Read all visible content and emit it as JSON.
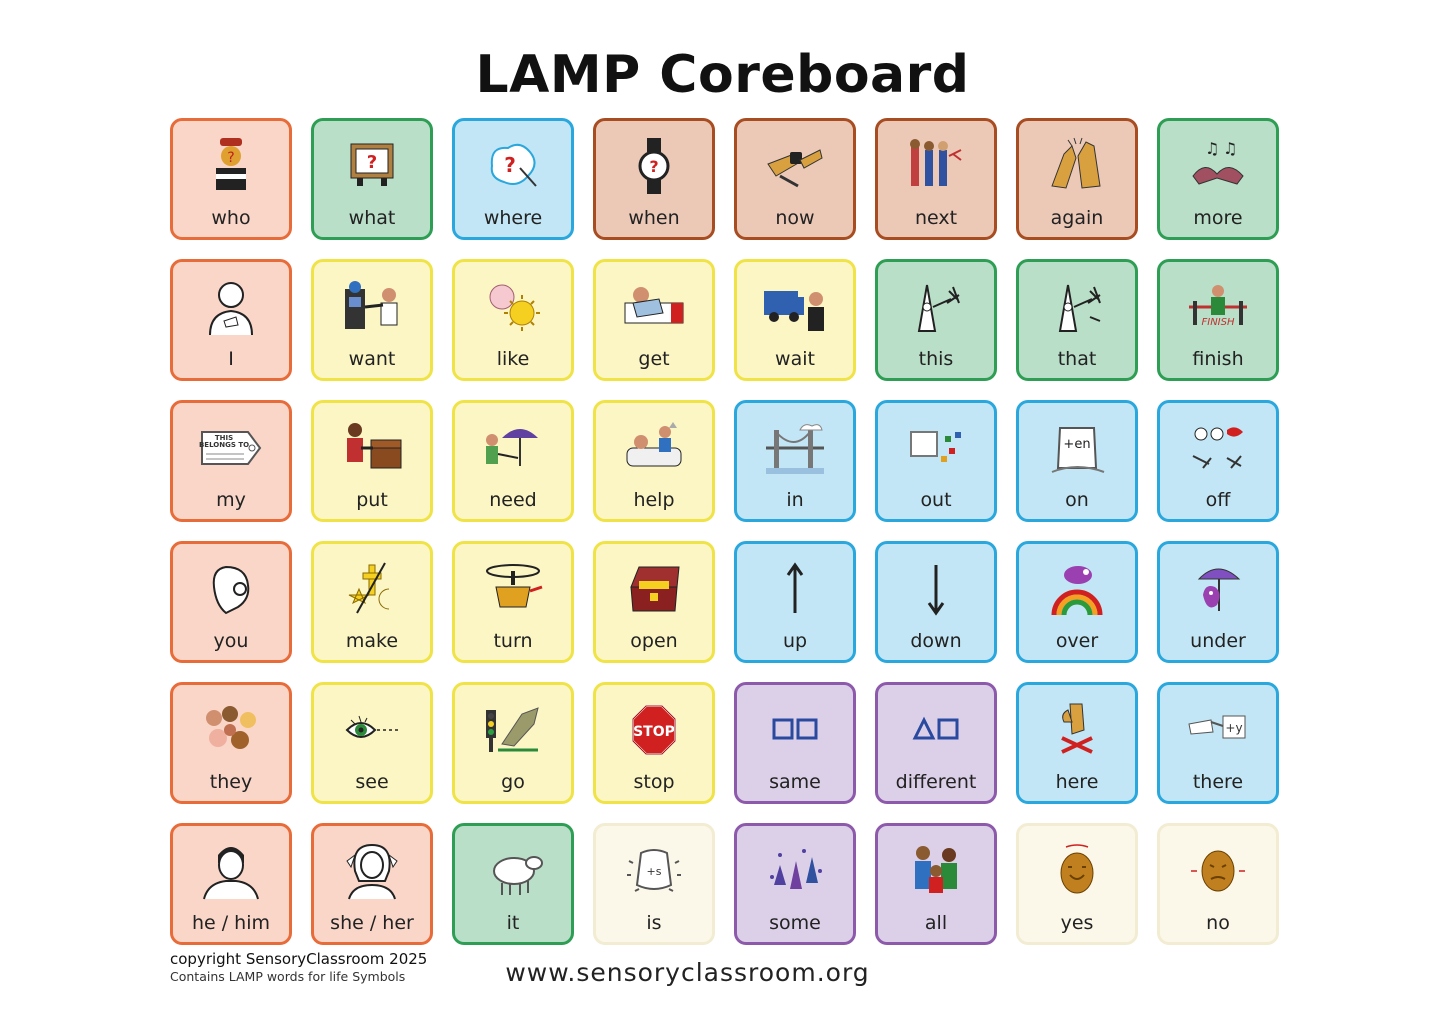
{
  "title": "LAMP Coreboard",
  "colors": {
    "orange": "#e86b3a",
    "green": "#2f9e55",
    "blue": "#2aa7dc",
    "brown": "#a84d22",
    "yellow": "#efe348",
    "purple": "#8d5aab",
    "cream": "#f2ecd2"
  },
  "cells": [
    {
      "label": "who",
      "color": "orange",
      "icon": "who-icon"
    },
    {
      "label": "what",
      "color": "green",
      "icon": "what-icon"
    },
    {
      "label": "where",
      "color": "blue",
      "icon": "where-icon"
    },
    {
      "label": "when",
      "color": "brown",
      "icon": "when-icon"
    },
    {
      "label": "now",
      "color": "brown",
      "icon": "now-icon"
    },
    {
      "label": "next",
      "color": "brown",
      "icon": "next-icon"
    },
    {
      "label": "again",
      "color": "brown",
      "icon": "again-icon"
    },
    {
      "label": "more",
      "color": "green",
      "icon": "more-icon"
    },
    {
      "label": "I",
      "color": "orange",
      "icon": "i-icon"
    },
    {
      "label": "want",
      "color": "yellow",
      "icon": "want-icon"
    },
    {
      "label": "like",
      "color": "yellow",
      "icon": "like-icon"
    },
    {
      "label": "get",
      "color": "yellow",
      "icon": "get-icon"
    },
    {
      "label": "wait",
      "color": "yellow",
      "icon": "wait-icon"
    },
    {
      "label": "this",
      "color": "green",
      "icon": "this-icon"
    },
    {
      "label": "that",
      "color": "green",
      "icon": "that-icon"
    },
    {
      "label": "finish",
      "color": "green",
      "icon": "finish-icon"
    },
    {
      "label": "my",
      "color": "orange",
      "icon": "my-icon"
    },
    {
      "label": "put",
      "color": "yellow",
      "icon": "put-icon"
    },
    {
      "label": "need",
      "color": "yellow",
      "icon": "need-icon"
    },
    {
      "label": "help",
      "color": "yellow",
      "icon": "help-icon"
    },
    {
      "label": "in",
      "color": "blue",
      "icon": "in-icon"
    },
    {
      "label": "out",
      "color": "blue",
      "icon": "out-icon"
    },
    {
      "label": "on",
      "color": "blue",
      "icon": "on-icon"
    },
    {
      "label": "off",
      "color": "blue",
      "icon": "off-icon"
    },
    {
      "label": "you",
      "color": "orange",
      "icon": "you-icon"
    },
    {
      "label": "make",
      "color": "yellow",
      "icon": "make-icon"
    },
    {
      "label": "turn",
      "color": "yellow",
      "icon": "turn-icon"
    },
    {
      "label": "open",
      "color": "yellow",
      "icon": "open-icon"
    },
    {
      "label": "up",
      "color": "blue",
      "icon": "up-arrow-icon"
    },
    {
      "label": "down",
      "color": "blue",
      "icon": "down-arrow-icon"
    },
    {
      "label": "over",
      "color": "blue",
      "icon": "over-icon"
    },
    {
      "label": "under",
      "color": "blue",
      "icon": "under-icon"
    },
    {
      "label": "they",
      "color": "orange",
      "icon": "they-icon"
    },
    {
      "label": "see",
      "color": "yellow",
      "icon": "see-icon"
    },
    {
      "label": "go",
      "color": "yellow",
      "icon": "go-icon"
    },
    {
      "label": "stop",
      "color": "yellow",
      "icon": "stop-sign-icon",
      "sign_text": "STOP"
    },
    {
      "label": "same",
      "color": "purple",
      "icon": "same-icon"
    },
    {
      "label": "different",
      "color": "purple",
      "icon": "different-icon"
    },
    {
      "label": "here",
      "color": "blue",
      "icon": "here-icon"
    },
    {
      "label": "there",
      "color": "blue",
      "icon": "there-icon"
    },
    {
      "label": "he / him",
      "color": "orange",
      "icon": "he-him-icon"
    },
    {
      "label": "she / her",
      "color": "orange",
      "icon": "she-her-icon"
    },
    {
      "label": "it",
      "color": "green",
      "icon": "it-icon"
    },
    {
      "label": "is",
      "color": "cream",
      "icon": "is-icon"
    },
    {
      "label": "some",
      "color": "purple",
      "icon": "some-icon"
    },
    {
      "label": "all",
      "color": "purple",
      "icon": "all-icon"
    },
    {
      "label": "yes",
      "color": "cream",
      "icon": "yes-icon"
    },
    {
      "label": "no",
      "color": "cream",
      "icon": "no-icon"
    }
  ],
  "footer": {
    "copyright": "copyright SensoryClassroom 2025",
    "contains": "Contains LAMP words for life Symbols",
    "url": "www.sensoryclassroom.org"
  }
}
